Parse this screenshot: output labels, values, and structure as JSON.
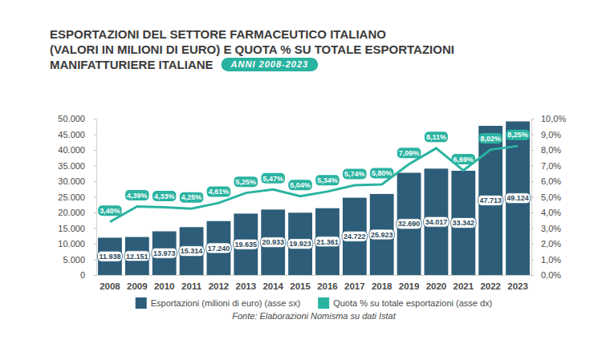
{
  "chart_data": {
    "type": "bar",
    "title": "ESPORTAZIONI DEL SETTORE FARMACEUTICO ITALIANO\n(VALORI IN MILIONI DI EURO) E QUOTA % SU TOTALE ESPORTAZIONI\nMANIFATTURIERE ITALIANE",
    "subtitle": "ANNI 2008-2023",
    "source": "Fonte: Elaborazioni Nomisma su dati Istat",
    "categories": [
      "2008",
      "2009",
      "2010",
      "2011",
      "2012",
      "2013",
      "2014",
      "2015",
      "2016",
      "2017",
      "2018",
      "2019",
      "2020",
      "2021",
      "2022",
      "2023"
    ],
    "series": [
      {
        "name": "Esportazioni (milioni di euro) (asse sx)",
        "type": "bar",
        "color": "#2d5d79",
        "values": [
          11938,
          12151,
          13973,
          15314,
          17240,
          19635,
          20933,
          19923,
          21361,
          24722,
          25923,
          32690,
          34017,
          33342,
          47713,
          49124
        ],
        "value_labels": [
          "11.938",
          "12.151",
          "13.973",
          "15.314",
          "17.240",
          "19.635",
          "20.933",
          "19.923",
          "21.361",
          "24.722",
          "25.923",
          "32.690",
          "34.017",
          "33.342",
          "47.713",
          "49.124"
        ]
      },
      {
        "name": "Quota % su totale esportazioni (asse dx)",
        "type": "line",
        "axis": "y2",
        "color": "#2ab3a1",
        "marker": "none",
        "line_style": "solid",
        "values": [
          3.4,
          4.39,
          4.33,
          4.25,
          4.61,
          5.25,
          5.47,
          5.04,
          5.34,
          5.74,
          5.8,
          7.09,
          8.11,
          6.69,
          8.02,
          8.25
        ],
        "value_labels": [
          "3,40%",
          "4,39%",
          "4,33%",
          "4,25%",
          "4,61%",
          "5,25%",
          "5,47%",
          "5,04%",
          "5,34%",
          "5,74%",
          "5,80%",
          "7,09%",
          "8,11%",
          "6,69%",
          "8,02%",
          "8,25%"
        ]
      }
    ],
    "ylim": [
      0,
      50000
    ],
    "yticks": [
      0,
      {
        "value": 5000,
        "label": "5.000"
      },
      {
        "value": 10000,
        "label": "10.000"
      },
      {
        "value": 15000,
        "label": "15.000"
      },
      {
        "value": 20000,
        "label": "20.000"
      },
      {
        "value": 25000,
        "label": "25.000"
      },
      {
        "value": 30000,
        "label": "30.000"
      },
      {
        "value": 35000,
        "label": "35.000"
      },
      {
        "value": 40000,
        "label": "40.000"
      },
      {
        "value": 45000,
        "label": "45.000"
      },
      {
        "value": 50000,
        "label": "50.000"
      }
    ],
    "y2lim": [
      0,
      10
    ],
    "y2ticks": [
      {
        "value": 0,
        "label": "0,0%"
      },
      {
        "value": 1,
        "label": "1,0%"
      },
      {
        "value": 2,
        "label": "2,0%"
      },
      {
        "value": 3,
        "label": "3,0%"
      },
      {
        "value": 4,
        "label": "4,0%"
      },
      {
        "value": 5,
        "label": "5,0%"
      },
      {
        "value": 6,
        "label": "6,0%"
      },
      {
        "value": 7,
        "label": "7,0%"
      },
      {
        "value": 8,
        "label": "8,0%"
      },
      {
        "value": 9,
        "label": "9,0%"
      },
      {
        "value": 10,
        "label": "10,0%"
      }
    ],
    "grid": false,
    "legend": "bottom",
    "data_labels": true
  }
}
